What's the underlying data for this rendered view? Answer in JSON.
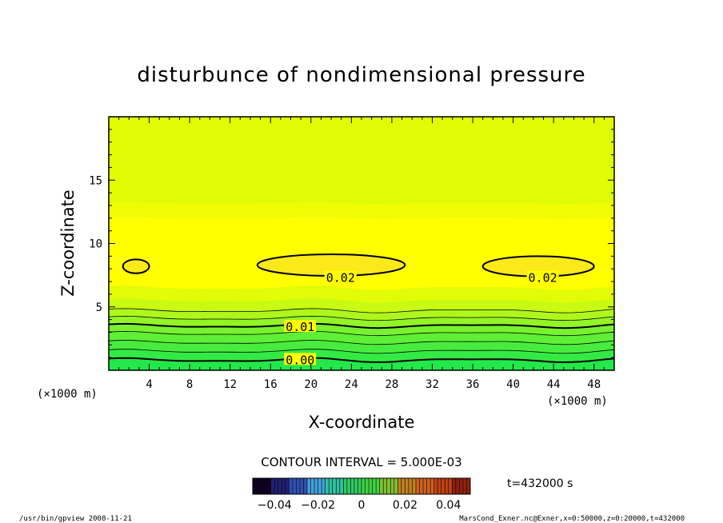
{
  "chart_data": {
    "type": "heatmap",
    "title": "disturbunce of nondimensional pressure",
    "xlabel": "X-coordinate",
    "ylabel": "Z-coordinate",
    "x_unit": "(×1000 m)",
    "y_unit": "(×1000 m)",
    "xlim": [
      0,
      50
    ],
    "ylim": [
      0,
      20
    ],
    "x_ticks": [
      4,
      8,
      12,
      16,
      20,
      24,
      28,
      32,
      36,
      40,
      44,
      48
    ],
    "y_ticks": [
      5,
      10,
      15
    ],
    "contour_interval_label": "CONTOUR INTERVAL = 5.000E-03",
    "time_label": "t=432000 s",
    "colorbar": {
      "ticks": [
        "-0.04",
        "-0.02",
        "0",
        "0.02",
        "0.04"
      ],
      "range": [
        -0.05,
        0.05
      ]
    },
    "contour_labels": [
      {
        "text": "0.02",
        "x": 21.5,
        "z": 7.3
      },
      {
        "text": "0.02",
        "x": 41.5,
        "z": 7.3
      },
      {
        "text": "0.01",
        "x": 17.5,
        "z": 3.4
      },
      {
        "text": "0.00",
        "x": 17.5,
        "z": 0.8
      }
    ],
    "bands": [
      {
        "z_from": 0.0,
        "z_to": 0.8,
        "color": "#22e84a"
      },
      {
        "z_from": 0.8,
        "z_to": 1.5,
        "color": "#33ea45"
      },
      {
        "z_from": 1.5,
        "z_to": 2.2,
        "color": "#48ec3e"
      },
      {
        "z_from": 2.2,
        "z_to": 2.9,
        "color": "#5eef36"
      },
      {
        "z_from": 2.9,
        "z_to": 3.5,
        "color": "#78f22e"
      },
      {
        "z_from": 3.5,
        "z_to": 4.1,
        "color": "#93f525"
      },
      {
        "z_from": 4.1,
        "z_to": 4.7,
        "color": "#aef71c"
      },
      {
        "z_from": 4.7,
        "z_to": 5.5,
        "color": "#c8fa12"
      },
      {
        "z_from": 5.5,
        "z_to": 6.5,
        "color": "#e2fc08"
      },
      {
        "z_from": 6.5,
        "z_to": 12.0,
        "color": "#ffff00"
      },
      {
        "z_from": 12.0,
        "z_to": 13.2,
        "color": "#f0fd02"
      },
      {
        "z_from": 13.2,
        "z_to": 20.0,
        "color": "#e0fc04"
      }
    ],
    "pockets": [
      {
        "cx": 22.0,
        "cz": 8.3,
        "rx": 7.3,
        "rz": 0.85
      },
      {
        "cx": 42.5,
        "cz": 8.2,
        "rx": 5.5,
        "rz": 0.8
      },
      {
        "cx": 2.7,
        "cz": 8.2,
        "rx": 1.3,
        "rz": 0.55
      }
    ]
  },
  "footer": {
    "left": "/usr/bin/gpview   2008-11-21",
    "right": "MarsCond_Exner.nc@Exner,x=0:50000,z=0:20000,t=432000"
  }
}
